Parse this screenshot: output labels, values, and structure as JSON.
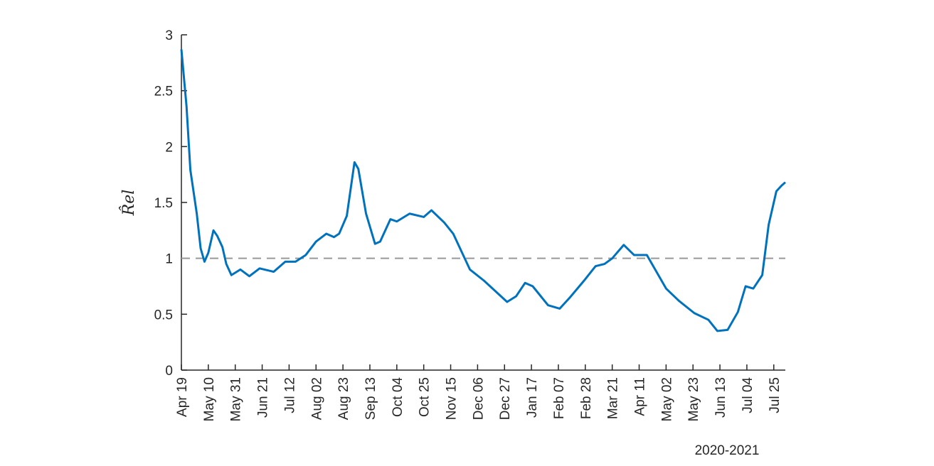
{
  "chart_data": {
    "type": "line",
    "ylabel": "R̂el",
    "xlabel": "2020-2021",
    "xlim": [
      0,
      471
    ],
    "ylim": [
      0,
      3
    ],
    "yticks": [
      0,
      0.5,
      1,
      1.5,
      2,
      2.5,
      3
    ],
    "xticks": [
      {
        "value": 0,
        "label": "Apr 19"
      },
      {
        "value": 21,
        "label": "May 10"
      },
      {
        "value": 42,
        "label": "May 31"
      },
      {
        "value": 63,
        "label": "Jun 21"
      },
      {
        "value": 84,
        "label": "Jul 12"
      },
      {
        "value": 105,
        "label": "Aug 02"
      },
      {
        "value": 126,
        "label": "Aug 23"
      },
      {
        "value": 147,
        "label": "Sep 13"
      },
      {
        "value": 168,
        "label": "Oct 04"
      },
      {
        "value": 189,
        "label": "Oct 25"
      },
      {
        "value": 210,
        "label": "Nov 15"
      },
      {
        "value": 231,
        "label": "Dec 06"
      },
      {
        "value": 252,
        "label": "Dec 27"
      },
      {
        "value": 273,
        "label": "Jan 17"
      },
      {
        "value": 294,
        "label": "Feb 07"
      },
      {
        "value": 315,
        "label": "Feb 28"
      },
      {
        "value": 336,
        "label": "Mar 21"
      },
      {
        "value": 357,
        "label": "Apr 11"
      },
      {
        "value": 378,
        "label": "May 02"
      },
      {
        "value": 399,
        "label": "May 23"
      },
      {
        "value": 420,
        "label": "Jun 13"
      },
      {
        "value": 441,
        "label": "Jul 04"
      },
      {
        "value": 462,
        "label": "Jul 25"
      }
    ],
    "reference_line": {
      "y": 1,
      "color": "#999999",
      "dashed": true
    },
    "series": [
      {
        "color": "#0072bd",
        "x": [
          0,
          4,
          7,
          12,
          15,
          18,
          21,
          25,
          28,
          32,
          35,
          39,
          46,
          53,
          61,
          72,
          81,
          89,
          97,
          105,
          113,
          119,
          123,
          129,
          135,
          138,
          144,
          151,
          155,
          163,
          168,
          178,
          189,
          195,
          205,
          212,
          225,
          236,
          254,
          261,
          268,
          274,
          286,
          295,
          303,
          314,
          323,
          330,
          336,
          345,
          353,
          363,
          378,
          388,
          400,
          411,
          418,
          426,
          434,
          440,
          446,
          453,
          458,
          464,
          468,
          471
        ],
        "values": [
          2.87,
          2.36,
          1.79,
          1.4,
          1.09,
          0.97,
          1.05,
          1.25,
          1.2,
          1.1,
          0.95,
          0.85,
          0.9,
          0.84,
          0.91,
          0.88,
          0.97,
          0.97,
          1.03,
          1.15,
          1.22,
          1.19,
          1.22,
          1.38,
          1.86,
          1.8,
          1.4,
          1.13,
          1.15,
          1.35,
          1.33,
          1.4,
          1.37,
          1.43,
          1.32,
          1.22,
          0.9,
          0.8,
          0.61,
          0.66,
          0.78,
          0.75,
          0.58,
          0.55,
          0.65,
          0.8,
          0.93,
          0.95,
          1.0,
          1.12,
          1.03,
          1.03,
          0.73,
          0.62,
          0.51,
          0.45,
          0.35,
          0.36,
          0.52,
          0.75,
          0.73,
          0.85,
          1.3,
          1.6,
          1.65,
          1.68
        ]
      }
    ]
  }
}
